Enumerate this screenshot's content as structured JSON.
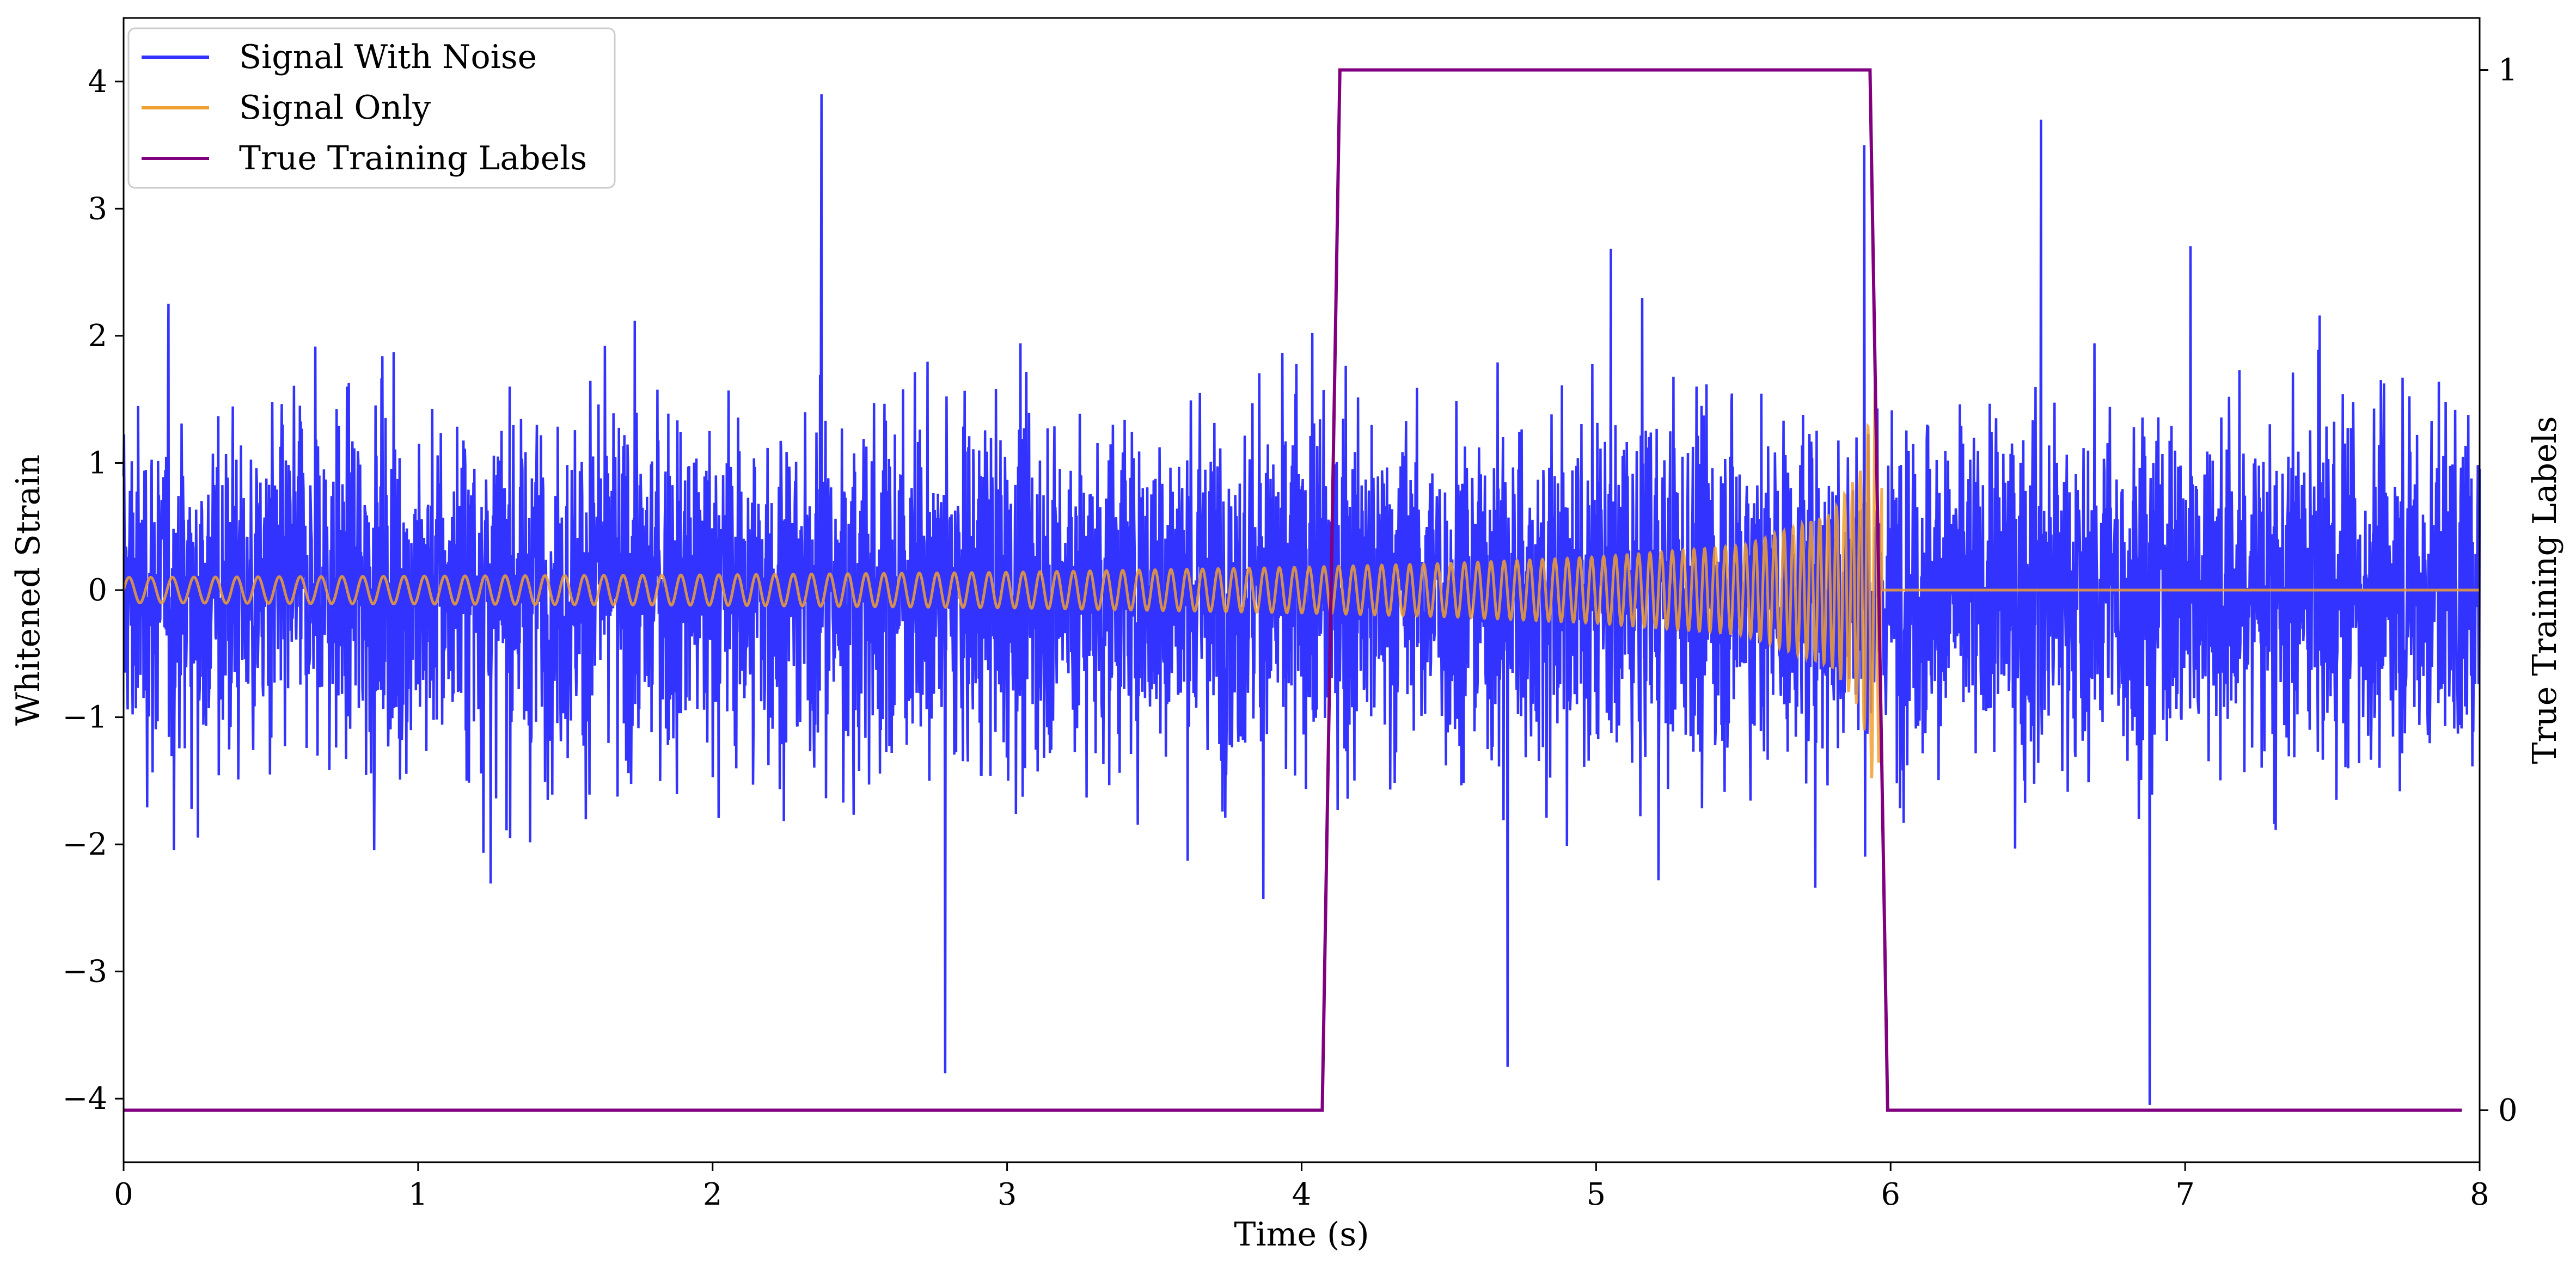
{
  "chart_data": {
    "type": "line",
    "title": "",
    "xlabel": "Time (s)",
    "ylabel": "Whitened Strain",
    "ylabel_right": "True Training Labels",
    "xlim": [
      0,
      8
    ],
    "ylim": [
      -4.5,
      4.5
    ],
    "ylim_right": [
      -0.05,
      1.05
    ],
    "x_ticks": [
      0,
      1,
      2,
      3,
      4,
      5,
      6,
      7,
      8
    ],
    "x_tick_labels": [
      "0",
      "1",
      "2",
      "3",
      "4",
      "5",
      "6",
      "7",
      "8"
    ],
    "y_ticks": [
      -4,
      -3,
      -2,
      -1,
      0,
      1,
      2,
      3,
      4
    ],
    "y_tick_labels": [
      "−4",
      "−3",
      "−2",
      "−1",
      "0",
      "1",
      "2",
      "3",
      "4"
    ],
    "y_right_ticks": [
      0,
      1
    ],
    "y_right_tick_labels": [
      "0",
      "1"
    ],
    "grid": false,
    "legend_position": "upper-left",
    "legend": [
      "Signal With Noise",
      "Signal Only",
      "True Training Labels"
    ],
    "colors": {
      "signal_with_noise": "#3333ff",
      "signal_only": "#f0a030",
      "labels": "#800080"
    },
    "series": [
      {
        "name": "Signal With Noise",
        "axis": "left",
        "description_of_values": "dense noisy strain time series",
        "typical_range": [
          -2.5,
          2.5
        ],
        "notable_peaks": [
          {
            "x": 2.37,
            "y": 3.9
          },
          {
            "x": 6.51,
            "y": 3.7
          },
          {
            "x": 5.91,
            "y": 3.5
          },
          {
            "x": 2.79,
            "y": -3.8
          },
          {
            "x": 6.88,
            "y": -4.05
          },
          {
            "x": 4.7,
            "y": -3.75
          }
        ]
      },
      {
        "name": "Signal Only",
        "axis": "left",
        "description_of_values": "chirp waveform with amplitude growing toward merger at ~5.93 s, zero after 6.0 s",
        "x": [
          0.0,
          1.0,
          2.0,
          3.0,
          4.0,
          4.5,
          5.0,
          5.5,
          5.8,
          5.9,
          5.95,
          6.0,
          8.0
        ],
        "amplitude": [
          0.1,
          0.11,
          0.12,
          0.14,
          0.18,
          0.21,
          0.26,
          0.35,
          0.6,
          0.95,
          1.7,
          0.0,
          0.0
        ]
      },
      {
        "name": "True Training Labels",
        "axis": "right",
        "x": [
          0.0,
          4.07,
          4.13,
          5.93,
          5.99,
          7.94
        ],
        "y": [
          0,
          0,
          1,
          1,
          0,
          0
        ]
      }
    ]
  }
}
